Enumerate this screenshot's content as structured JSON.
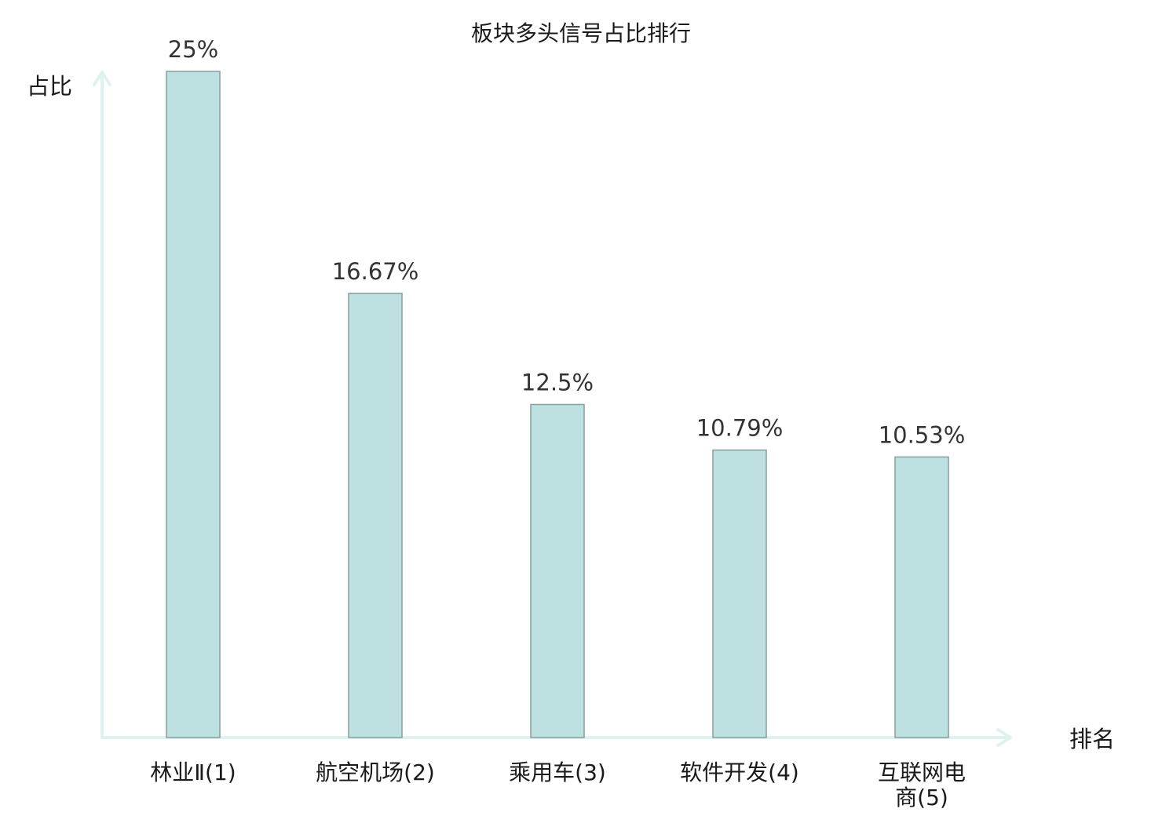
{
  "chart_data": {
    "type": "bar",
    "title": "板块多头信号占比排行",
    "ylabel": "占比",
    "xlabel": "排名",
    "ylim": [
      0,
      25
    ],
    "categories": [
      "林业Ⅱ(1)",
      "航空机场(2)",
      "乘用车(3)",
      "软件开发(4)",
      "互联网电商(5)"
    ],
    "category_lines": [
      [
        "林业Ⅱ(1)"
      ],
      [
        "航空机场(2)"
      ],
      [
        "乘用车(3)"
      ],
      [
        "软件开发(4)"
      ],
      [
        "互联网电",
        "商(5)"
      ]
    ],
    "values": [
      25,
      16.67,
      12.5,
      10.79,
      10.53
    ],
    "value_labels": [
      "25%",
      "16.67%",
      "12.5%",
      "10.79%",
      "10.53%"
    ],
    "highlight_index": 3,
    "grid": false,
    "colors": {
      "bar_fill": "#bde0e1",
      "bar_stroke": "#869f9f",
      "axis": "#e0f2ef",
      "highlight_text": "#e8141b",
      "text": "#1a1a1a",
      "value_text": "#333333"
    }
  }
}
